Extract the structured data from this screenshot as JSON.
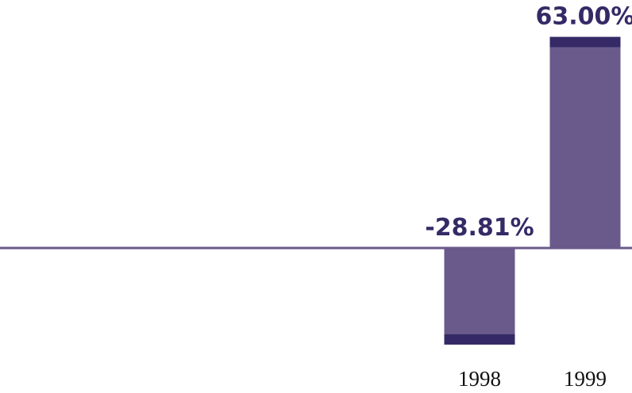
{
  "chart_data": {
    "type": "bar",
    "title": "",
    "xlabel": "",
    "ylabel": "",
    "categories": [
      "1998",
      "1999"
    ],
    "values": [
      -28.81,
      63.0
    ],
    "value_labels": [
      "-28.81%",
      "63.00%"
    ],
    "ylim": [
      -30,
      63
    ],
    "grid": false,
    "legend": "none",
    "colors": {
      "bar": "#6a5a8c",
      "bar_cap": "#352a66",
      "label": "#352a66",
      "axis": "#6a5a8c",
      "tick_label": "#111111"
    }
  }
}
